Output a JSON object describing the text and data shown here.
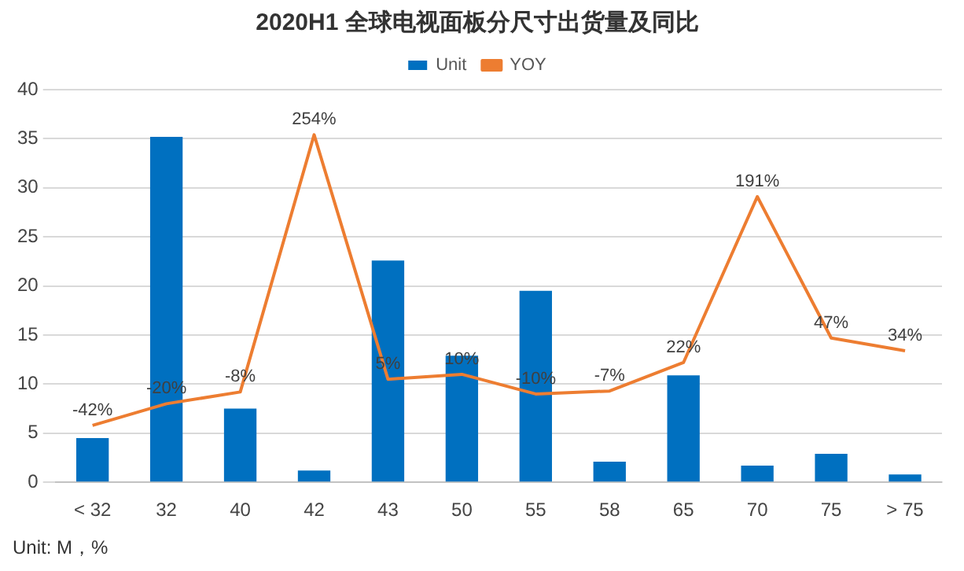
{
  "chart_data": {
    "type": "bar",
    "title": "2020H1 全球电视面板分尺寸出货量及同比",
    "categories": [
      "< 32",
      "32",
      "40",
      "42",
      "43",
      "50",
      "55",
      "58",
      "65",
      "70",
      "75",
      "> 75"
    ],
    "series": [
      {
        "name": "Unit",
        "color": "#0070c0",
        "values": [
          4.5,
          35.2,
          7.5,
          1.2,
          22.6,
          12.9,
          19.5,
          2.1,
          10.9,
          1.7,
          2.9,
          0.8
        ]
      },
      {
        "name": "YOY",
        "type": "line",
        "axis": "y2",
        "color": "#ed7d31",
        "values": [
          -42,
          -20,
          -8,
          254,
          5,
          10,
          -10,
          -7,
          22,
          191,
          47,
          34
        ],
        "value_labels": [
          "-42%",
          "-20%",
          "-8%",
          "254%",
          "5%",
          "10%",
          "-10%",
          "-7%",
          "22%",
          "191%",
          "47%",
          "34%"
        ]
      }
    ],
    "ylim": [
      0,
      40
    ],
    "yticks": [
      0,
      5,
      10,
      15,
      20,
      25,
      30,
      35,
      40
    ],
    "grid": "y",
    "legend": "top",
    "annotations": [
      "Unit: M，%"
    ]
  }
}
